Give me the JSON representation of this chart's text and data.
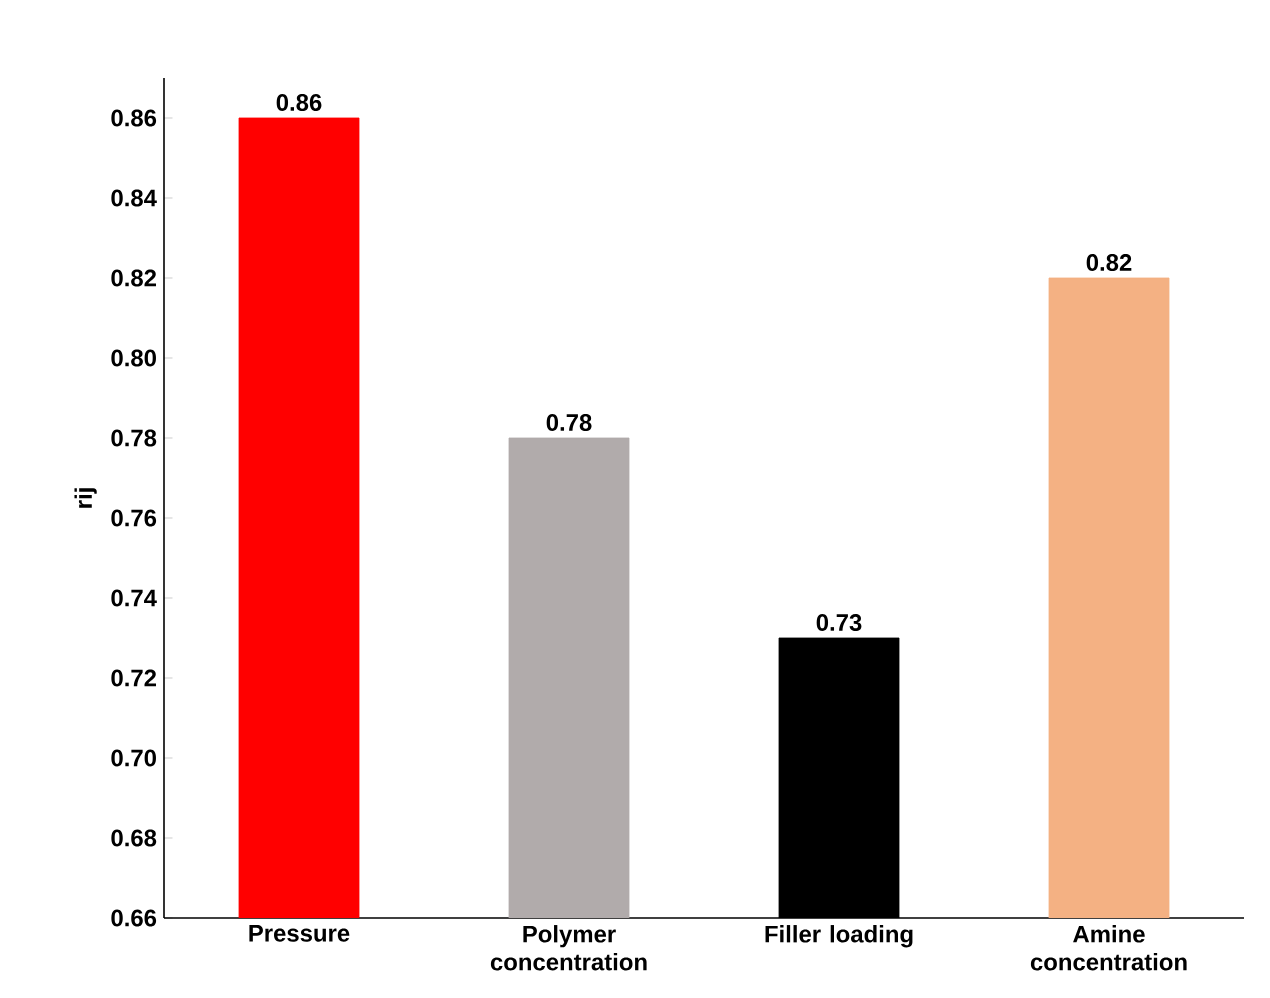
{
  "chart_data": {
    "type": "bar",
    "ylabel": "rij",
    "categories": [
      "Pressure",
      "Polymer concentration",
      "Filler loading",
      "Amine concentration"
    ],
    "values": [
      0.86,
      0.78,
      0.73,
      0.82
    ],
    "colors": [
      "#ff0000",
      "#b1abab",
      "#000000",
      "#f4b183"
    ],
    "ylim": [
      0.66,
      0.87
    ],
    "yticks": [
      0.66,
      0.68,
      {
        "value": 0.7,
        "label": "0.70"
      },
      0.72,
      0.74,
      0.76,
      0.78,
      {
        "value": 0.8,
        "label": "0.80"
      },
      0.82,
      0.84,
      0.86
    ],
    "data_labels": true
  }
}
